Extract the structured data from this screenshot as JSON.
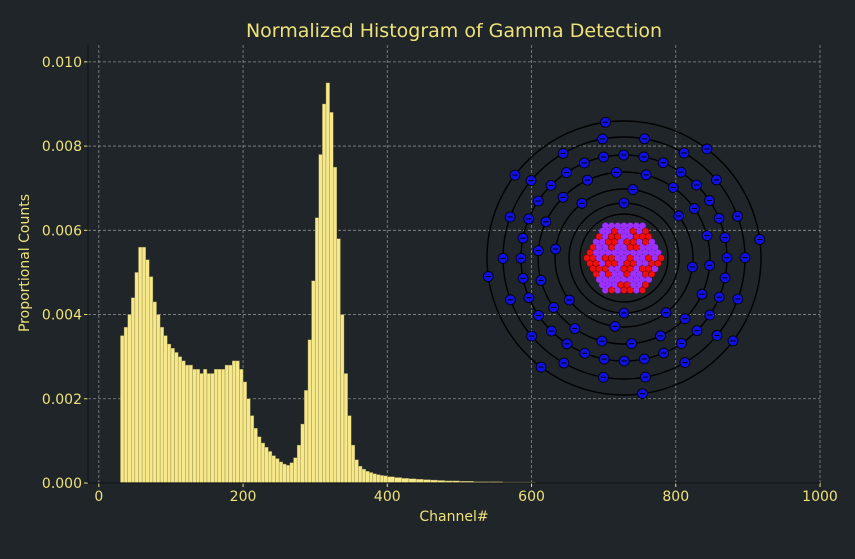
{
  "chart_data": {
    "type": "bar",
    "title": "Normalized Histogram of Gamma Detection",
    "xlabel": "Channel#",
    "ylabel": "Proportional Counts",
    "xlim": [
      -15,
      1000
    ],
    "ylim": [
      0,
      0.0104
    ],
    "xticks": [
      0,
      200,
      400,
      600,
      800,
      1000
    ],
    "xtick_labels": [
      "0",
      "200",
      "400",
      "600",
      "800",
      "1000"
    ],
    "yticks": [
      0,
      0.002,
      0.004,
      0.006,
      0.008,
      0.01
    ],
    "ytick_labels": [
      "0.000",
      "0.002",
      "0.004",
      "0.006",
      "0.008",
      "0.010"
    ],
    "grid": true,
    "bin_width": 5,
    "x": [
      30,
      35,
      40,
      45,
      50,
      55,
      60,
      65,
      70,
      75,
      80,
      85,
      90,
      95,
      100,
      105,
      110,
      115,
      120,
      125,
      130,
      135,
      140,
      145,
      150,
      155,
      160,
      165,
      170,
      175,
      180,
      185,
      190,
      195,
      200,
      205,
      210,
      215,
      220,
      225,
      230,
      235,
      240,
      245,
      250,
      255,
      260,
      265,
      270,
      275,
      280,
      285,
      290,
      295,
      300,
      305,
      310,
      315,
      320,
      325,
      330,
      335,
      340,
      345,
      350,
      355,
      360,
      365,
      370,
      375,
      380,
      385,
      390,
      395,
      400,
      410,
      420,
      430,
      440,
      450,
      460,
      470,
      480,
      490,
      500,
      520,
      540,
      560,
      580,
      600
    ],
    "values": [
      0.0035,
      0.0037,
      0.004,
      0.0044,
      0.005,
      0.0056,
      0.0056,
      0.0053,
      0.0049,
      0.0043,
      0.004,
      0.0037,
      0.0035,
      0.0033,
      0.0032,
      0.0031,
      0.003,
      0.0029,
      0.0028,
      0.0028,
      0.0027,
      0.0027,
      0.0026,
      0.0027,
      0.0026,
      0.0026,
      0.0027,
      0.0027,
      0.0027,
      0.0028,
      0.0028,
      0.0029,
      0.0029,
      0.0027,
      0.0024,
      0.002,
      0.0016,
      0.0013,
      0.0011,
      0.00095,
      0.00085,
      0.00075,
      0.00065,
      0.00058,
      0.0005,
      0.00045,
      0.00042,
      0.00048,
      0.0006,
      0.0009,
      0.0014,
      0.0022,
      0.0034,
      0.0048,
      0.0063,
      0.0078,
      0.009,
      0.0095,
      0.0088,
      0.0075,
      0.0058,
      0.004,
      0.0026,
      0.0016,
      0.0009,
      0.00055,
      0.0004,
      0.00033,
      0.00028,
      0.00025,
      0.00022,
      0.0002,
      0.00018,
      0.00017,
      0.00015,
      0.00013,
      0.00011,
      0.0001,
      9e-05,
      8e-05,
      7e-05,
      6e-05,
      5e-05,
      5e-05,
      4e-05,
      3e-05,
      3e-05,
      2e-05,
      2e-05,
      2e-05
    ],
    "colors": {
      "background": "#1f2528",
      "bars": "#f7e98a",
      "bar_edge": "#8f8650",
      "text": "#eee27a",
      "grid": "#b8b8b8",
      "spine": "#14181a"
    },
    "inset": {
      "description_kind": "atom-model",
      "electron_shells": [
        2,
        8,
        18,
        32,
        18,
        8
      ],
      "colors": {
        "electron": "#1010e0",
        "proton": "#ee1010",
        "neutron": "#9b30ff",
        "orbit": "#000000"
      }
    }
  }
}
